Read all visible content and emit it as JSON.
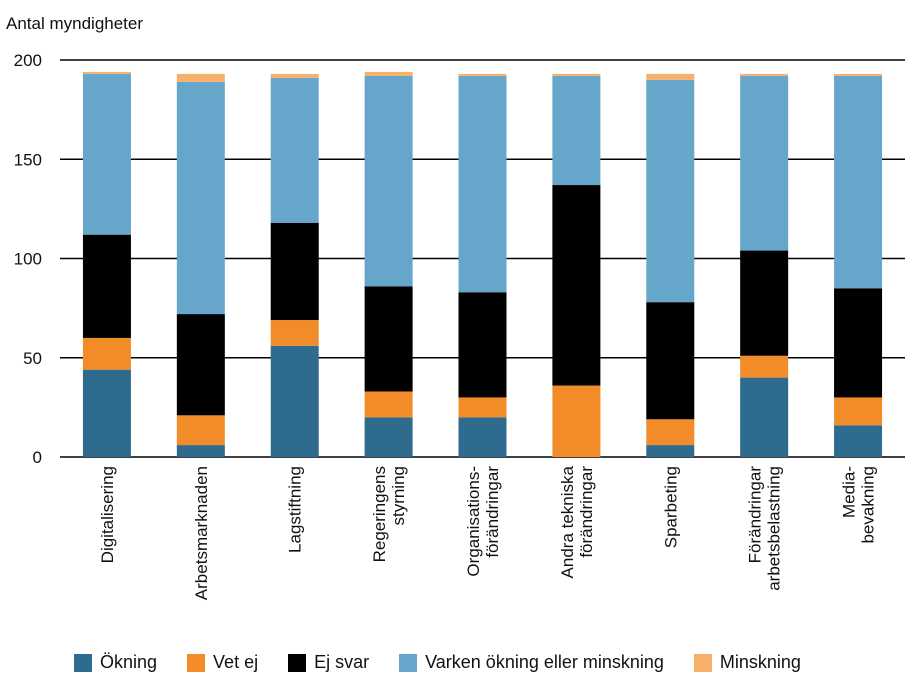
{
  "chart_data": {
    "type": "bar",
    "stacked": true,
    "ylabel": "Antal myndigheter",
    "ylim": [
      0,
      200
    ],
    "yticks": [
      0,
      50,
      100,
      150,
      200
    ],
    "grid": true,
    "legend_position": "bottom",
    "categories": [
      [
        "Digitalisering"
      ],
      [
        "Arbetsmarknaden"
      ],
      [
        "Lagstiftning"
      ],
      [
        "Regeringens",
        "styrning"
      ],
      [
        "Organisations-",
        "förändringar"
      ],
      [
        "Andra tekniska",
        "förändringar"
      ],
      [
        "Sparbeting"
      ],
      [
        "Förändringar",
        "arbetsbelastning"
      ],
      [
        "Media-",
        "bevakning"
      ]
    ],
    "series": [
      {
        "name": "Ökning",
        "color": "#2e6b8f",
        "values": [
          44,
          6,
          56,
          20,
          20,
          0,
          6,
          40,
          16
        ]
      },
      {
        "name": "Vet ej",
        "color": "#f28c28",
        "values": [
          16,
          15,
          13,
          13,
          10,
          36,
          13,
          11,
          14
        ]
      },
      {
        "name": "Ej svar",
        "color": "#000000",
        "values": [
          52,
          51,
          49,
          53,
          53,
          101,
          59,
          53,
          55
        ]
      },
      {
        "name": "Varken ökning eller minskning",
        "color": "#67a6cb",
        "values": [
          81,
          117,
          73,
          106,
          109,
          55,
          112,
          88,
          107
        ]
      },
      {
        "name": "Minskning",
        "color": "#f7b06a",
        "values": [
          1,
          4,
          2,
          2,
          1,
          1,
          3,
          1,
          1
        ]
      }
    ]
  }
}
